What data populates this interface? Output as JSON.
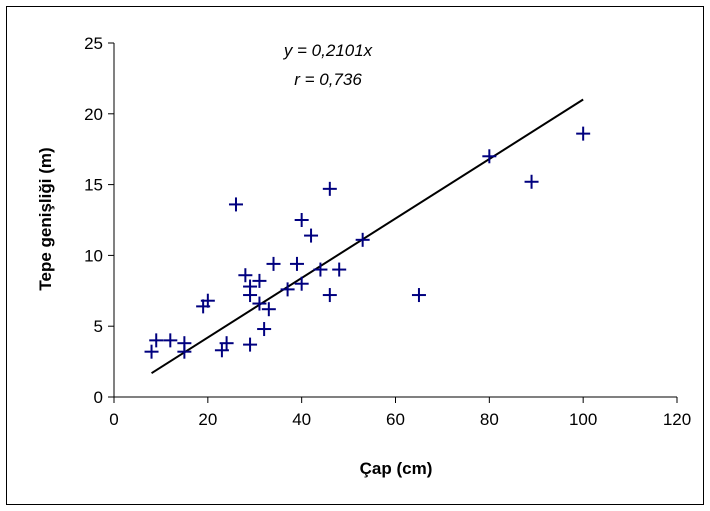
{
  "chart_data": {
    "type": "scatter",
    "title": "",
    "xlabel": "Çap (cm)",
    "ylabel": "Tepe genişliği (m)",
    "xlim": [
      0,
      120
    ],
    "ylim": [
      0,
      25
    ],
    "x_ticks": [
      0,
      20,
      40,
      60,
      80,
      100,
      120
    ],
    "y_ticks": [
      0,
      5,
      10,
      15,
      20,
      25
    ],
    "grid": false,
    "legend": "none",
    "marker": "plus",
    "marker_color": "#00007f",
    "annotations": [
      "y = 0,2101x",
      "r = 0,736"
    ],
    "trendline": {
      "slope": 0.2101,
      "x_range": [
        8,
        100
      ]
    },
    "points": [
      {
        "x": 8,
        "y": 3.2
      },
      {
        "x": 9,
        "y": 4.0
      },
      {
        "x": 12,
        "y": 4.0
      },
      {
        "x": 15,
        "y": 3.8
      },
      {
        "x": 15,
        "y": 3.2
      },
      {
        "x": 19,
        "y": 6.4
      },
      {
        "x": 20,
        "y": 6.8
      },
      {
        "x": 23,
        "y": 3.3
      },
      {
        "x": 24,
        "y": 3.8
      },
      {
        "x": 26,
        "y": 13.6
      },
      {
        "x": 28,
        "y": 8.6
      },
      {
        "x": 29,
        "y": 7.8
      },
      {
        "x": 29,
        "y": 7.2
      },
      {
        "x": 29,
        "y": 3.7
      },
      {
        "x": 31,
        "y": 8.2
      },
      {
        "x": 31,
        "y": 6.6
      },
      {
        "x": 32,
        "y": 4.8
      },
      {
        "x": 33,
        "y": 6.2
      },
      {
        "x": 34,
        "y": 9.4
      },
      {
        "x": 37,
        "y": 7.6
      },
      {
        "x": 39,
        "y": 9.4
      },
      {
        "x": 40,
        "y": 12.5
      },
      {
        "x": 40,
        "y": 8.0
      },
      {
        "x": 42,
        "y": 11.4
      },
      {
        "x": 44,
        "y": 9.0
      },
      {
        "x": 46,
        "y": 14.7
      },
      {
        "x": 46,
        "y": 7.2
      },
      {
        "x": 48,
        "y": 9.0
      },
      {
        "x": 53,
        "y": 11.1
      },
      {
        "x": 65,
        "y": 7.2
      },
      {
        "x": 80,
        "y": 17.0
      },
      {
        "x": 89,
        "y": 15.2
      },
      {
        "x": 100,
        "y": 18.6
      }
    ]
  }
}
